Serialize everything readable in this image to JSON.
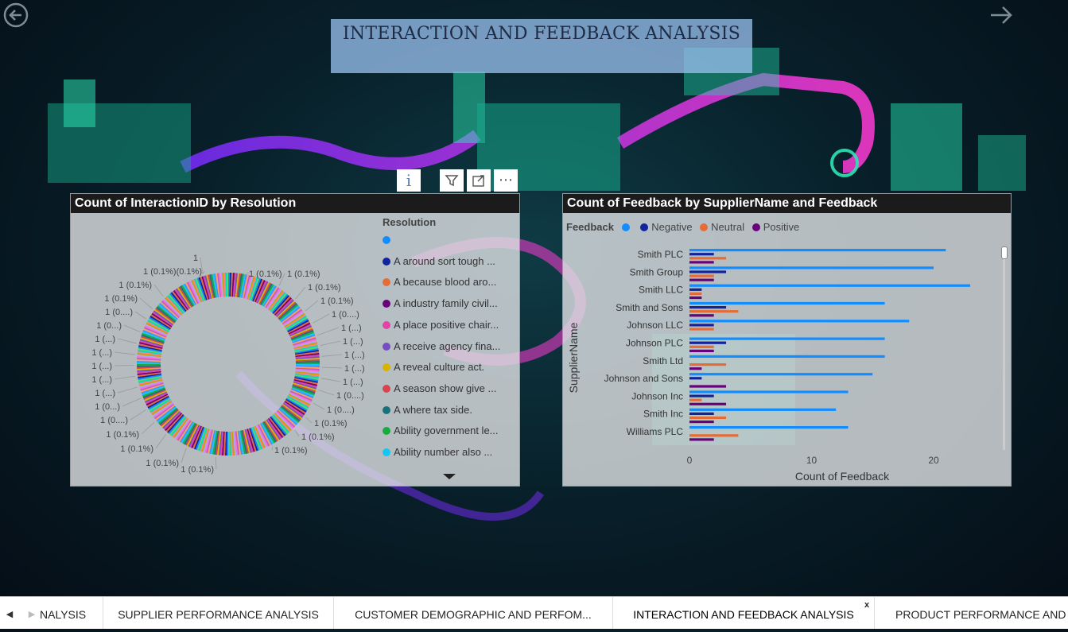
{
  "page": {
    "title": "INTERACTION AND FEEDBACK ANALYSIS",
    "back_icon": "back-arrow-circle-icon",
    "forward_icon": "forward-arrow-icon"
  },
  "toolbar": {
    "info": "i",
    "filter_icon": "filter-icon",
    "focus_icon": "focus-mode-icon",
    "more": "⋯"
  },
  "colors": {
    "title_bg": "#96bee9",
    "series_blank": "#118dff",
    "series_negative": "#12239e",
    "series_neutral": "#e66c37",
    "series_positive": "#6b007b"
  },
  "donut": {
    "title": "Count of InteractionID by Resolution",
    "legend_title": "Resolution",
    "legend": [
      {
        "label": "",
        "color": "#118dff"
      },
      {
        "label": "A around sort tough ...",
        "color": "#12239e"
      },
      {
        "label": "A because blood aro...",
        "color": "#e66c37"
      },
      {
        "label": "A industry family civil...",
        "color": "#6b007b"
      },
      {
        "label": "A place positive chair...",
        "color": "#e044a7"
      },
      {
        "label": "A receive agency fina...",
        "color": "#744ec2"
      },
      {
        "label": "A reveal culture act.",
        "color": "#d9b300"
      },
      {
        "label": "A season show give ...",
        "color": "#d64550"
      },
      {
        "label": "A where tax side.",
        "color": "#197278"
      },
      {
        "label": "Ability government le...",
        "color": "#1aab40"
      },
      {
        "label": "Ability number also ...",
        "color": "#15c6f4"
      }
    ],
    "slice_labels": [
      {
        "text": "1",
        "x": 160,
        "y": 58
      },
      {
        "text": "1 (0.1%)(0.1%)",
        "x": 165,
        "y": 75
      },
      {
        "text": "1 (0.1%)",
        "x": 102,
        "y": 92
      },
      {
        "text": "1 (0.1%)",
        "x": 84,
        "y": 109
      },
      {
        "text": "1 (0....)",
        "x": 78,
        "y": 126
      },
      {
        "text": "1 (0...)",
        "x": 64,
        "y": 143
      },
      {
        "text": "1 (...)",
        "x": 56,
        "y": 160
      },
      {
        "text": "1 (...)",
        "x": 52,
        "y": 177
      },
      {
        "text": "1 (...)",
        "x": 52,
        "y": 194
      },
      {
        "text": "1 (...)",
        "x": 52,
        "y": 211
      },
      {
        "text": "1 (...)",
        "x": 56,
        "y": 228
      },
      {
        "text": "1 (0...)",
        "x": 62,
        "y": 245
      },
      {
        "text": "1 (0....)",
        "x": 72,
        "y": 262
      },
      {
        "text": "1 (0.1%)",
        "x": 86,
        "y": 280
      },
      {
        "text": "1 (0.1%)",
        "x": 104,
        "y": 298
      },
      {
        "text": "1 (0.1%)",
        "x": 136,
        "y": 316
      },
      {
        "text": "1 (0.1%)",
        "x": 180,
        "y": 324
      },
      {
        "text": "1 (0.1%)",
        "x": 224,
        "y": 78
      },
      {
        "text": "1 (0.1%)",
        "x": 272,
        "y": 78
      },
      {
        "text": "1 (0.1%)",
        "x": 298,
        "y": 95
      },
      {
        "text": "1 (0.1%)",
        "x": 314,
        "y": 112
      },
      {
        "text": "1 (0....)",
        "x": 328,
        "y": 129
      },
      {
        "text": "1 (...)",
        "x": 340,
        "y": 146
      },
      {
        "text": "1 (...)",
        "x": 342,
        "y": 163
      },
      {
        "text": "1 (...)",
        "x": 344,
        "y": 180
      },
      {
        "text": "1 (...)",
        "x": 344,
        "y": 197
      },
      {
        "text": "1 (...)",
        "x": 342,
        "y": 214
      },
      {
        "text": "1 (0....)",
        "x": 334,
        "y": 231
      },
      {
        "text": "1 (0....)",
        "x": 322,
        "y": 249
      },
      {
        "text": "1 (0.1%)",
        "x": 306,
        "y": 266
      },
      {
        "text": "1 (0.1%)",
        "x": 290,
        "y": 283
      },
      {
        "text": "1 (0.1%)",
        "x": 256,
        "y": 300
      }
    ]
  },
  "bar": {
    "title": "Count of Feedback by SupplierName and Feedback",
    "legend_title": "Feedback"
  },
  "chart_data": {
    "type": "bar",
    "orientation": "horizontal",
    "title": "Count of Feedback by SupplierName and Feedback",
    "xlabel": "Count of Feedback",
    "ylabel": "SupplierName",
    "xlim": [
      0,
      25
    ],
    "xticks": [
      0,
      10,
      20
    ],
    "legend_position": "top-left",
    "categories": [
      "Smith PLC",
      "Smith Group",
      "Smith LLC",
      "Smith and Sons",
      "Johnson LLC",
      "Johnson PLC",
      "Smith Ltd",
      "Johnson and Sons",
      "Johnson Inc",
      "Smith Inc",
      "Williams PLC"
    ],
    "series": [
      {
        "name": "",
        "color": "#118dff",
        "values": [
          21,
          20,
          23,
          16,
          18,
          16,
          16,
          15,
          13,
          12,
          13
        ]
      },
      {
        "name": "Negative",
        "color": "#12239e",
        "values": [
          2,
          3,
          1,
          3,
          2,
          3,
          0,
          1,
          2,
          2,
          0
        ]
      },
      {
        "name": "Neutral",
        "color": "#e66c37",
        "values": [
          3,
          2,
          1,
          4,
          2,
          2,
          3,
          0,
          1,
          3,
          4
        ]
      },
      {
        "name": "Positive",
        "color": "#6b007b",
        "values": [
          2,
          2,
          1,
          2,
          0,
          2,
          1,
          3,
          3,
          2,
          2
        ]
      }
    ]
  },
  "tabs": [
    {
      "label": "NALYSIS",
      "active": false
    },
    {
      "label": "SUPPLIER PERFORMANCE ANALYSIS",
      "active": false
    },
    {
      "label": "CUSTOMER DEMOGRAPHIC AND PERFOM...",
      "active": false
    },
    {
      "label": "INTERACTION AND FEEDBACK ANALYSIS",
      "active": true
    },
    {
      "label": "PRODUCT PERFORMANCE AND S",
      "active": false
    }
  ],
  "tab_close": "x",
  "tab_prev": "◀",
  "tab_next": "▶"
}
